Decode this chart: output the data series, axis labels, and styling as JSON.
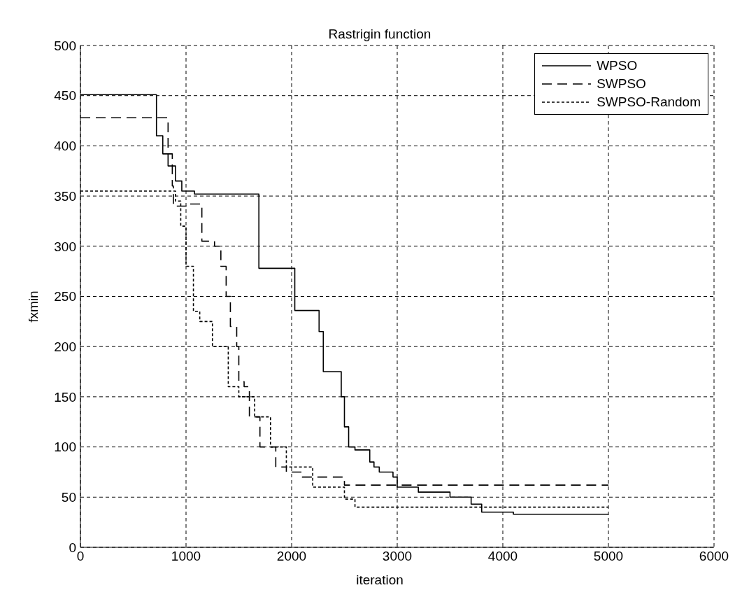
{
  "chart_data": {
    "type": "step",
    "title": "Rastrigin function",
    "xlabel": "iteration",
    "ylabel": "fxmin",
    "xlim": [
      0,
      6000
    ],
    "xticks": [
      0,
      1000,
      2000,
      3000,
      4000,
      5000,
      6000
    ],
    "ylim": [
      0,
      500
    ],
    "yticks": [
      0,
      50,
      100,
      150,
      200,
      250,
      300,
      350,
      400,
      450,
      500
    ],
    "grid": true,
    "legend": "top right",
    "marker": "none",
    "series": [
      {
        "name": "WPSO",
        "color": "#000000",
        "line_style": "solid",
        "x": [
          0,
          720,
          780,
          830,
          900,
          960,
          1080,
          1620,
          1690,
          2000,
          2030,
          2260,
          2300,
          2470,
          2500,
          2540,
          2600,
          2740,
          2780,
          2830,
          2960,
          3000,
          3200,
          3500,
          3700,
          3800,
          4100,
          5000
        ],
        "values": [
          451,
          410,
          392,
          380,
          365,
          355,
          352,
          352,
          278,
          278,
          236,
          215,
          175,
          150,
          120,
          100,
          97,
          85,
          80,
          75,
          70,
          60,
          55,
          50,
          43,
          35,
          33,
          33
        ]
      },
      {
        "name": "SWPSO",
        "color": "#000000",
        "line_style": "dashed",
        "x": [
          0,
          830,
          870,
          880,
          1000,
          1150,
          1270,
          1330,
          1380,
          1420,
          1480,
          1500,
          1550,
          1600,
          1700,
          1850,
          1950,
          2100,
          2500,
          2600,
          5000
        ],
        "values": [
          428,
          392,
          360,
          340,
          342,
          305,
          300,
          280,
          250,
          220,
          200,
          165,
          160,
          130,
          100,
          80,
          75,
          70,
          62,
          62,
          62
        ]
      },
      {
        "name": "SWPSO-Random",
        "color": "#000000",
        "line_style": "dotted",
        "x": [
          0,
          900,
          950,
          1000,
          1070,
          1130,
          1250,
          1400,
          1500,
          1650,
          1800,
          1950,
          2200,
          2500,
          2600,
          5000
        ],
        "values": [
          355,
          345,
          320,
          280,
          235,
          225,
          200,
          160,
          150,
          130,
          100,
          80,
          60,
          48,
          40,
          40
        ]
      }
    ]
  }
}
